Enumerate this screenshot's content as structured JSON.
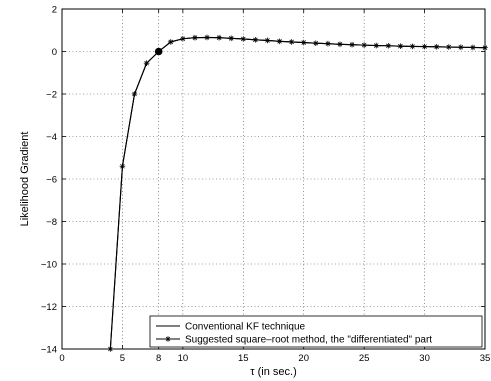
{
  "chart_data": {
    "type": "line",
    "title": "",
    "xlabel": "τ  (in sec.)",
    "ylabel": "Likelihood Gradient",
    "xlim": [
      0,
      35
    ],
    "ylim": [
      -14,
      2
    ],
    "grid": true,
    "grid_style": "dotted",
    "x_ticks": [
      0,
      5,
      8,
      10,
      15,
      20,
      25,
      30,
      35
    ],
    "y_ticks": [
      -14,
      -12,
      -10,
      -8,
      -6,
      -4,
      -2,
      0,
      2
    ],
    "legend_position": "bottom-right",
    "highlight_point": {
      "x": 8,
      "y": 0.0
    },
    "series": [
      {
        "name": "Conventional KF technique",
        "line_style": "solid",
        "marker": "none",
        "color": "#000000",
        "x": [
          4,
          5,
          6,
          7,
          8,
          9,
          10,
          11,
          12,
          13,
          14,
          15,
          16,
          17,
          18,
          19,
          20,
          21,
          22,
          23,
          24,
          25,
          26,
          27,
          28,
          29,
          30,
          31,
          32,
          33,
          34,
          35
        ],
        "y": [
          -14.0,
          -5.4,
          -2.0,
          -0.55,
          0.0,
          0.45,
          0.6,
          0.65,
          0.66,
          0.65,
          0.62,
          0.59,
          0.55,
          0.52,
          0.48,
          0.45,
          0.42,
          0.39,
          0.37,
          0.34,
          0.32,
          0.3,
          0.28,
          0.27,
          0.25,
          0.24,
          0.23,
          0.22,
          0.21,
          0.2,
          0.19,
          0.18
        ]
      },
      {
        "name": "Suggested square–root method, the \"differentiated\" part",
        "line_style": "solid",
        "marker": "asterisk",
        "color": "#000000",
        "x": [
          4,
          5,
          6,
          7,
          8,
          9,
          10,
          11,
          12,
          13,
          14,
          15,
          16,
          17,
          18,
          19,
          20,
          21,
          22,
          23,
          24,
          25,
          26,
          27,
          28,
          29,
          30,
          31,
          32,
          33,
          34,
          35
        ],
        "y": [
          -14.0,
          -5.4,
          -2.0,
          -0.55,
          0.0,
          0.45,
          0.6,
          0.65,
          0.66,
          0.65,
          0.62,
          0.59,
          0.55,
          0.52,
          0.48,
          0.45,
          0.42,
          0.39,
          0.37,
          0.34,
          0.32,
          0.3,
          0.28,
          0.27,
          0.25,
          0.24,
          0.23,
          0.22,
          0.21,
          0.2,
          0.19,
          0.18
        ]
      }
    ]
  }
}
